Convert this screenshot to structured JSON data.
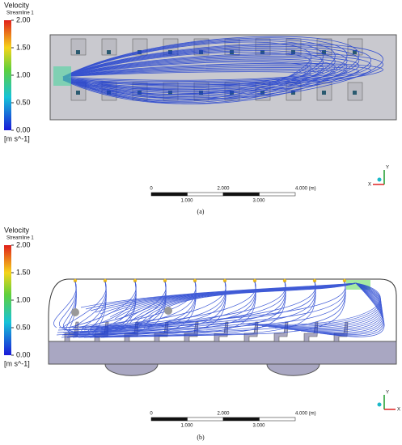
{
  "panels": [
    {
      "legend": {
        "title": "Velocity",
        "subtitle": "Streamline 1",
        "ticks": [
          "2.00",
          "1.50",
          "1.00",
          "0.50",
          "0.00"
        ],
        "unit": "[m s^-1]"
      },
      "scale": {
        "top": [
          "0",
          "2.000",
          "4.000 (m)"
        ],
        "bottom": [
          "1.000",
          "3.000"
        ]
      },
      "axes": {
        "up": "Y",
        "side": "X"
      },
      "caption": "(a)"
    },
    {
      "legend": {
        "title": "Velocity",
        "subtitle": "Streamline 1",
        "ticks": [
          "2.00",
          "1.50",
          "1.00",
          "0.50",
          "0.00"
        ],
        "unit": "[m s^-1]"
      },
      "scale": {
        "top": [
          "0",
          "2.000",
          "4.000 (m)"
        ],
        "bottom": [
          "1.000",
          "3.000"
        ]
      },
      "axes": {
        "up": "Y",
        "side": "X"
      },
      "caption": "(b)"
    }
  ]
}
